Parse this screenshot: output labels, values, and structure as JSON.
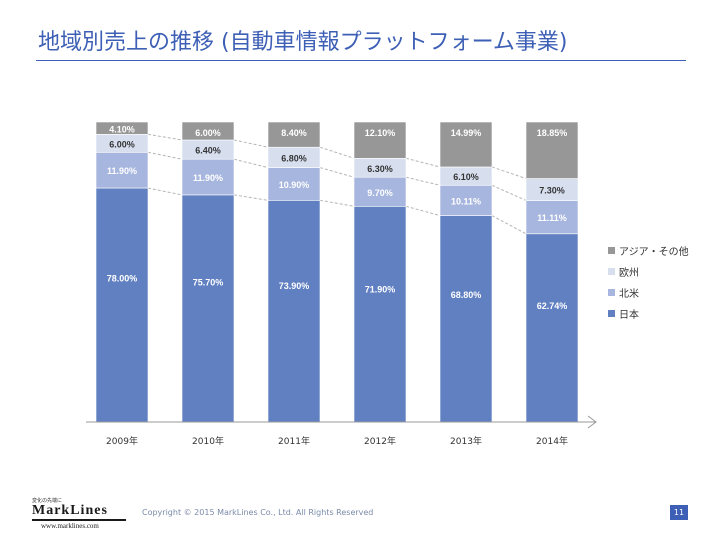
{
  "title": "地域別売上の推移 (自動車情報プラットフォーム事業)",
  "footer": {
    "logo_tagline": "変化の先端に",
    "logo_text": "MarkLines",
    "logo_url": "www.marklines.com",
    "copyright": "Copyright © 2015 MarkLines Co., Ltd. All Rights Reserved",
    "page_number": "11"
  },
  "colors": {
    "japan": "#6180c2",
    "north_america": "#a7b6de",
    "europe": "#d7dfef",
    "asia_other": "#979797",
    "title": "#3d5fb5"
  },
  "chart_data": {
    "type": "bar",
    "stacked": true,
    "percent": true,
    "categories": [
      "2009年",
      "2010年",
      "2011年",
      "2012年",
      "2013年",
      "2014年"
    ],
    "series": [
      {
        "name": "日本",
        "values": [
          78.0,
          75.7,
          73.9,
          71.9,
          68.8,
          62.74
        ],
        "labels": [
          "78.00%",
          "75.70%",
          "73.90%",
          "71.90%",
          "68.80%",
          "62.74%"
        ]
      },
      {
        "name": "北米",
        "values": [
          11.9,
          11.9,
          10.9,
          9.7,
          10.11,
          11.11
        ],
        "labels": [
          "11.90%",
          "11.90%",
          "10.90%",
          "9.70%",
          "10.11%",
          "11.11%"
        ]
      },
      {
        "name": "欧州",
        "values": [
          6.0,
          6.4,
          6.8,
          6.3,
          6.1,
          7.3
        ],
        "labels": [
          "6.00%",
          "6.40%",
          "6.80%",
          "6.30%",
          "6.10%",
          "7.30%"
        ]
      },
      {
        "name": "アジア・その他",
        "values": [
          4.1,
          6.0,
          8.4,
          12.1,
          14.99,
          18.85
        ],
        "labels": [
          "4.10%",
          "6.00%",
          "8.40%",
          "12.10%",
          "14.99%",
          "18.85%"
        ]
      }
    ],
    "legend_order": [
      "アジア・その他",
      "欧州",
      "北米",
      "日本"
    ],
    "legend_position": "right",
    "grid": false
  }
}
